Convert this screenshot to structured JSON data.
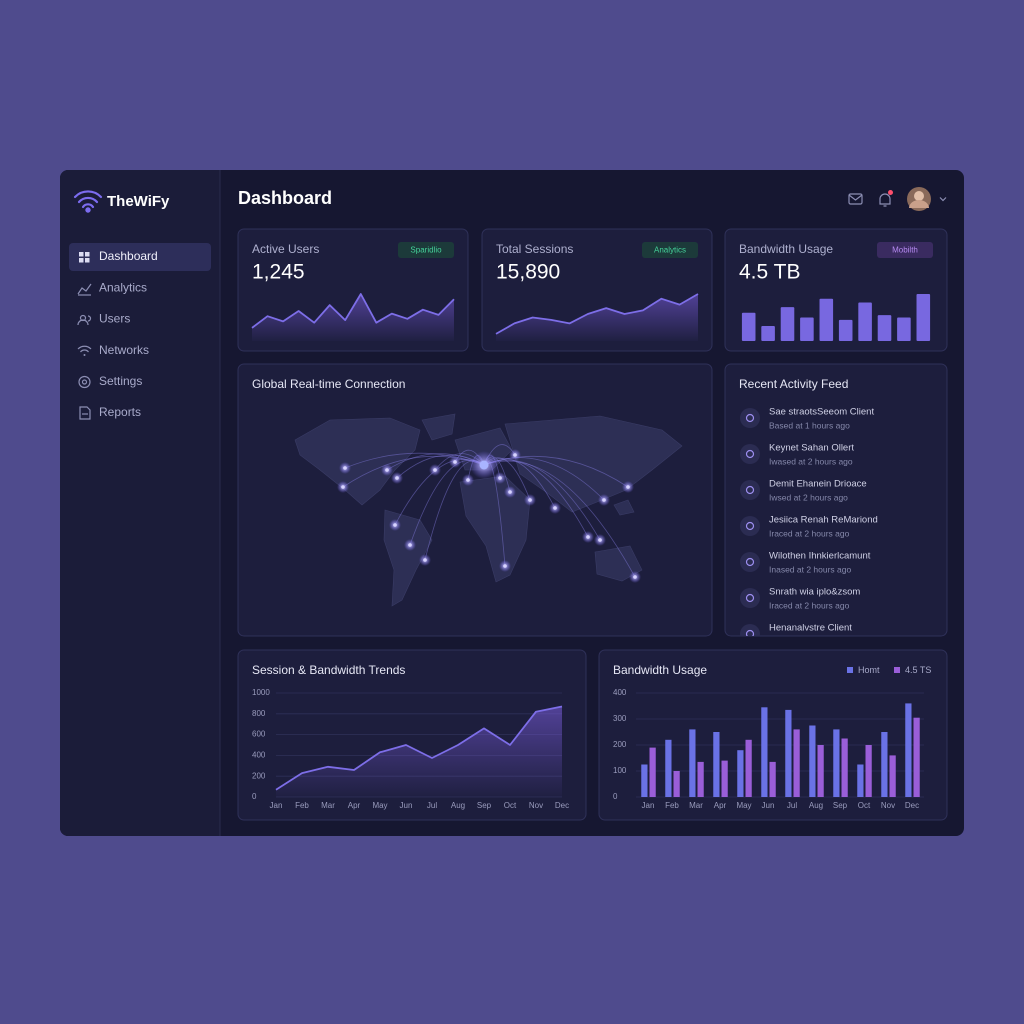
{
  "brand": "TheWiFy",
  "nav": [
    "Dashboard",
    "Analytics",
    "Users",
    "Networks",
    "Settings",
    "Reports"
  ],
  "header": {
    "title": "Dashboard"
  },
  "kpis": [
    {
      "label": "Active Users",
      "value": "1,245",
      "badge": "Sparidlio",
      "spark": {
        "type": "line",
        "color": "#7d6ee8",
        "values": [
          20,
          38,
          30,
          46,
          28,
          55,
          32,
          72,
          28,
          42,
          34,
          48,
          40,
          64
        ]
      }
    },
    {
      "label": "Total Sessions",
      "value": "15,890",
      "badge": "Analytics",
      "spark": {
        "type": "line",
        "color": "#7d6ee8",
        "values": [
          12,
          30,
          40,
          36,
          30,
          46,
          56,
          46,
          52,
          72,
          62,
          80
        ]
      }
    },
    {
      "label": "Bandwidth Usage",
      "value": "4.5 TB",
      "badge": "Mobilth",
      "spark": {
        "type": "bar",
        "color": "#7868e0",
        "values": [
          60,
          32,
          72,
          50,
          90,
          45,
          82,
          55,
          50,
          100
        ]
      }
    }
  ],
  "map": {
    "title": "Global Real-time Connection"
  },
  "feed": {
    "title": "Recent Activity Feed",
    "items": [
      {
        "name": "Sae straotsSeeom Client",
        "time": "Based at 1 hours ago"
      },
      {
        "name": "Keynet Sahan Ollert",
        "time": "Iwased at 2 hours ago"
      },
      {
        "name": "Demit Ehanein Drioace",
        "time": "Iwsed at 2 hours ago"
      },
      {
        "name": "Jesiica Renah ReMariond",
        "time": "Iraced at 2 hours ago"
      },
      {
        "name": "Wilothen Ihnkierlcamunt",
        "time": "Inased at 2 hours ago"
      },
      {
        "name": "Snrath wia iplo&zsom",
        "time": "Iraced at 2 hours ago"
      },
      {
        "name": "Henanalvstre Client",
        "time": ""
      }
    ]
  },
  "chart_data": [
    {
      "type": "line",
      "title": "Session & Bandwidth Trends",
      "categories": [
        "Jan",
        "Feb",
        "Mar",
        "Apr",
        "May",
        "Jun",
        "Jul",
        "Aug",
        "Sep",
        "Oct",
        "Nov",
        "Dec"
      ],
      "series": [
        {
          "color": "#7d6ee8",
          "values": [
            70,
            230,
            290,
            260,
            430,
            500,
            375,
            500,
            660,
            500,
            820,
            870
          ]
        }
      ],
      "ylim": [
        0,
        1000
      ],
      "yticks": [
        0,
        200,
        400,
        600,
        800,
        1000
      ],
      "grid": true
    },
    {
      "type": "bar",
      "title": "Bandwidth Usage",
      "categories": [
        "Jan",
        "Feb",
        "Mar",
        "Apr",
        "May",
        "Jun",
        "Jul",
        "Aug",
        "Sep",
        "Oct",
        "Nov",
        "Dec"
      ],
      "series": [
        {
          "name": "Homt",
          "color": "#6a72e6",
          "values": [
            125,
            220,
            260,
            250,
            180,
            345,
            335,
            275,
            260,
            125,
            250,
            360
          ]
        },
        {
          "name": "4.5 TS",
          "color": "#9a5ed8",
          "values": [
            190,
            100,
            135,
            140,
            220,
            135,
            260,
            200,
            225,
            200,
            160,
            305
          ]
        }
      ],
      "ylim": [
        0,
        400
      ],
      "yticks": [
        0,
        100,
        200,
        300,
        400
      ],
      "grid": true,
      "legend": "top-right"
    }
  ]
}
